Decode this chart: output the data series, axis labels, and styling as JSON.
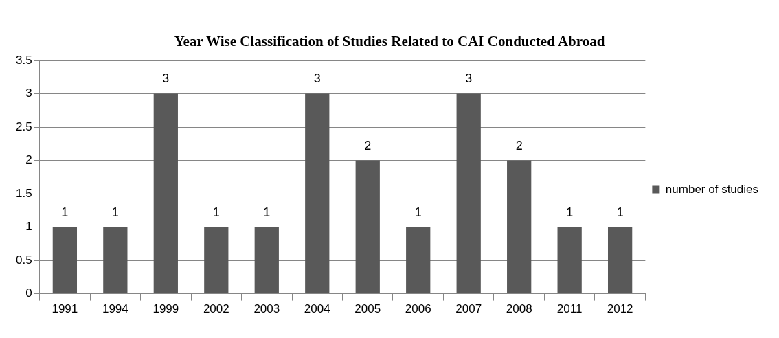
{
  "chart_data": {
    "type": "bar",
    "title": "Year Wise Classification of Studies Related to CAI Conducted Abroad",
    "categories": [
      "1991",
      "1994",
      "1999",
      "2002",
      "2003",
      "2004",
      "2005",
      "2006",
      "2007",
      "2008",
      "2011",
      "2012"
    ],
    "series": [
      {
        "name": "number of studies",
        "color": "#595959",
        "values": [
          1,
          1,
          3,
          1,
          1,
          3,
          2,
          1,
          3,
          2,
          1,
          1
        ]
      }
    ],
    "ylim": [
      0,
      3.5
    ],
    "yticks": [
      0,
      0.5,
      1,
      1.5,
      2,
      2.5,
      3,
      3.5
    ],
    "grid": "y",
    "legend": "right",
    "data_labels": true
  }
}
